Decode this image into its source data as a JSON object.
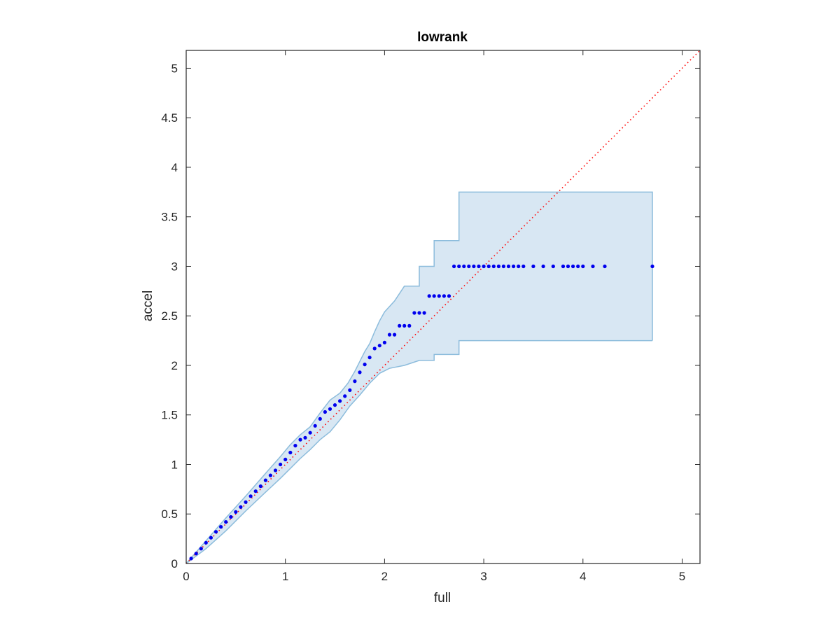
{
  "chart_data": {
    "type": "scatter",
    "title": "lowrank",
    "xlabel": "full",
    "ylabel": "accel",
    "xlim": [
      0,
      5.18
    ],
    "ylim": [
      0,
      5.18
    ],
    "xticks": [
      0,
      1,
      2,
      3,
      4,
      5
    ],
    "xtick_labels": [
      "0",
      "1",
      "2",
      "3",
      "4",
      "5"
    ],
    "yticks": [
      0,
      0.5,
      1,
      1.5,
      2,
      2.5,
      3,
      3.5,
      4,
      4.5,
      5
    ],
    "ytick_labels": [
      "0",
      "0.5",
      "1",
      "1.5",
      "2",
      "2.5",
      "3",
      "3.5",
      "4",
      "4.5",
      "5"
    ],
    "grid": false,
    "box": true,
    "colors": {
      "points": "#0000ee",
      "band_fill": "#d8e7f3",
      "band_edge": "#8cbcdc",
      "reference": "#ff0000",
      "axes": "#262626"
    },
    "reference_line": {
      "style": "dotted",
      "from": [
        0,
        0
      ],
      "to": [
        5.18,
        5.18
      ]
    },
    "confidence_band": {
      "upper": [
        [
          0.0,
          0.0
        ],
        [
          0.2,
          0.23
        ],
        [
          0.4,
          0.46
        ],
        [
          0.6,
          0.68
        ],
        [
          0.8,
          0.91
        ],
        [
          0.95,
          1.08
        ],
        [
          1.05,
          1.2
        ],
        [
          1.15,
          1.3
        ],
        [
          1.25,
          1.38
        ],
        [
          1.35,
          1.52
        ],
        [
          1.45,
          1.65
        ],
        [
          1.55,
          1.72
        ],
        [
          1.63,
          1.82
        ],
        [
          1.7,
          1.94
        ],
        [
          1.75,
          2.04
        ],
        [
          1.8,
          2.14
        ],
        [
          1.85,
          2.22
        ],
        [
          1.9,
          2.34
        ],
        [
          1.95,
          2.45
        ],
        [
          2.0,
          2.54
        ],
        [
          2.1,
          2.65
        ],
        [
          2.2,
          2.8
        ],
        [
          2.35,
          2.8
        ],
        [
          2.35,
          3.0
        ],
        [
          2.5,
          3.0
        ],
        [
          2.5,
          3.26
        ],
        [
          2.75,
          3.26
        ],
        [
          2.75,
          3.75
        ],
        [
          4.7,
          3.75
        ]
      ],
      "lower": [
        [
          0.0,
          0.0
        ],
        [
          0.2,
          0.15
        ],
        [
          0.4,
          0.33
        ],
        [
          0.6,
          0.53
        ],
        [
          0.8,
          0.72
        ],
        [
          0.95,
          0.86
        ],
        [
          1.05,
          0.96
        ],
        [
          1.15,
          1.06
        ],
        [
          1.25,
          1.15
        ],
        [
          1.35,
          1.25
        ],
        [
          1.45,
          1.33
        ],
        [
          1.55,
          1.45
        ],
        [
          1.65,
          1.59
        ],
        [
          1.75,
          1.7
        ],
        [
          1.85,
          1.82
        ],
        [
          1.95,
          1.92
        ],
        [
          2.05,
          1.97
        ],
        [
          2.2,
          2.0
        ],
        [
          2.35,
          2.05
        ],
        [
          2.5,
          2.05
        ],
        [
          2.5,
          2.11
        ],
        [
          2.75,
          2.11
        ],
        [
          2.75,
          2.25
        ],
        [
          4.7,
          2.25
        ]
      ]
    },
    "series": [
      {
        "x": [
          0.05,
          0.1,
          0.15,
          0.2,
          0.25,
          0.3,
          0.35,
          0.4,
          0.45,
          0.5,
          0.55,
          0.6,
          0.65,
          0.7,
          0.75,
          0.8,
          0.85,
          0.9,
          0.95,
          1.0,
          1.05,
          1.1,
          1.15,
          1.2,
          1.25,
          1.3,
          1.35,
          1.4,
          1.45,
          1.5,
          1.55,
          1.6,
          1.65,
          1.7,
          1.75,
          1.8,
          1.85,
          1.9,
          1.95,
          2.0,
          2.05,
          2.1,
          2.15,
          2.2,
          2.25,
          2.3,
          2.35,
          2.4,
          2.45,
          2.5,
          2.55,
          2.6,
          2.65,
          2.7,
          2.75,
          2.8,
          2.85,
          2.9,
          2.95,
          3.0,
          3.05,
          3.1,
          3.15,
          3.2,
          3.25,
          3.3,
          3.35,
          3.4,
          3.5,
          3.6,
          3.7,
          3.8,
          3.85,
          3.9,
          3.95,
          4.0,
          4.1,
          4.22,
          4.7
        ],
        "y": [
          0.05,
          0.1,
          0.15,
          0.21,
          0.26,
          0.32,
          0.37,
          0.42,
          0.47,
          0.52,
          0.57,
          0.62,
          0.68,
          0.73,
          0.78,
          0.84,
          0.89,
          0.94,
          1.0,
          1.05,
          1.12,
          1.19,
          1.25,
          1.27,
          1.32,
          1.39,
          1.46,
          1.53,
          1.56,
          1.6,
          1.64,
          1.69,
          1.75,
          1.84,
          1.93,
          2.01,
          2.08,
          2.17,
          2.2,
          2.23,
          2.31,
          2.31,
          2.4,
          2.4,
          2.4,
          2.53,
          2.53,
          2.53,
          2.7,
          2.7,
          2.7,
          2.7,
          2.7,
          3.0,
          3.0,
          3.0,
          3.0,
          3.0,
          3.0,
          3.0,
          3.0,
          3.0,
          3.0,
          3.0,
          3.0,
          3.0,
          3.0,
          3.0,
          3.0,
          3.0,
          3.0,
          3.0,
          3.0,
          3.0,
          3.0,
          3.0,
          3.0,
          3.0,
          3.0
        ]
      }
    ]
  }
}
